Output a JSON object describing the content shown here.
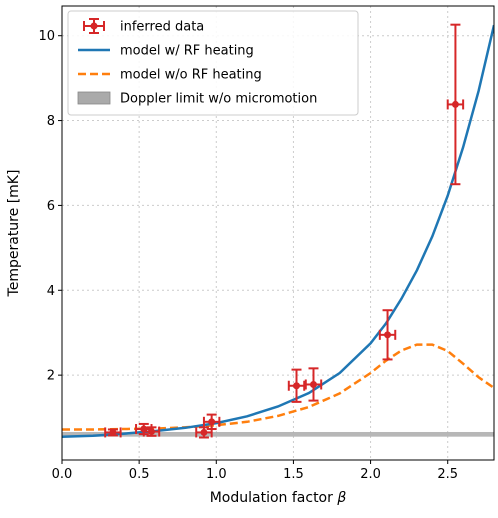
{
  "chart_data": {
    "type": "scatter",
    "xlabel": "Modulation factor",
    "xlabel_symbol": "β",
    "ylabel": "Temperature [mK]",
    "xlim": [
      0.0,
      2.8
    ],
    "ylim": [
      0.0,
      10.7
    ],
    "xticks": [
      0.0,
      0.5,
      1.0,
      1.5,
      2.0,
      2.5
    ],
    "xtick_labels": [
      "0.0",
      "0.5",
      "1.0",
      "1.5",
      "2.0",
      "2.5"
    ],
    "yticks": [
      2,
      4,
      6,
      8,
      10
    ],
    "ytick_labels": [
      "2",
      "4",
      "6",
      "8",
      "10"
    ],
    "grid": true,
    "legend_position": "top-left",
    "colors": {
      "data": "#d62728",
      "model_rf": "#1f77b4",
      "model_no_rf": "#ff7f0e",
      "doppler": "#aaaaaa"
    },
    "series": [
      {
        "name": "inferred data",
        "kind": "errorbar",
        "points": [
          {
            "x": 0.33,
            "y": 0.65,
            "xerr": 0.05,
            "yerr": 0.07
          },
          {
            "x": 0.53,
            "y": 0.73,
            "xerr": 0.05,
            "yerr": 0.12
          },
          {
            "x": 0.58,
            "y": 0.67,
            "xerr": 0.05,
            "yerr": 0.1
          },
          {
            "x": 0.92,
            "y": 0.65,
            "xerr": 0.05,
            "yerr": 0.12
          },
          {
            "x": 0.97,
            "y": 0.9,
            "xerr": 0.05,
            "yerr": 0.17
          },
          {
            "x": 1.52,
            "y": 1.75,
            "xerr": 0.05,
            "yerr": 0.38
          },
          {
            "x": 1.63,
            "y": 1.78,
            "xerr": 0.05,
            "yerr": 0.38
          },
          {
            "x": 2.11,
            "y": 2.95,
            "xerr": 0.05,
            "yerr": 0.58
          },
          {
            "x": 2.55,
            "y": 8.38,
            "xerr": 0.05,
            "yerr": 1.88
          }
        ]
      },
      {
        "name": "model w/ RF heating",
        "kind": "line",
        "x": [
          0.0,
          0.2,
          0.4,
          0.6,
          0.8,
          1.0,
          1.2,
          1.4,
          1.6,
          1.8,
          2.0,
          2.1,
          2.2,
          2.3,
          2.4,
          2.5,
          2.6,
          2.7,
          2.8
        ],
        "y": [
          0.55,
          0.57,
          0.62,
          0.68,
          0.76,
          0.87,
          1.03,
          1.26,
          1.58,
          2.05,
          2.75,
          3.22,
          3.8,
          4.47,
          5.27,
          6.23,
          7.37,
          8.7,
          10.25
        ]
      },
      {
        "name": "model w/o RF heating",
        "kind": "dashed-line",
        "x": [
          0.0,
          0.2,
          0.4,
          0.6,
          0.8,
          1.0,
          1.2,
          1.4,
          1.6,
          1.8,
          2.0,
          2.1,
          2.2,
          2.3,
          2.4,
          2.5,
          2.6,
          2.7,
          2.8
        ],
        "y": [
          0.72,
          0.72,
          0.73,
          0.74,
          0.77,
          0.82,
          0.9,
          1.04,
          1.25,
          1.57,
          2.05,
          2.34,
          2.58,
          2.72,
          2.72,
          2.57,
          2.27,
          1.95,
          1.7
        ]
      },
      {
        "name": "Doppler limit w/o micromotion",
        "kind": "band",
        "y_low": 0.55,
        "y_high": 0.66
      }
    ]
  }
}
